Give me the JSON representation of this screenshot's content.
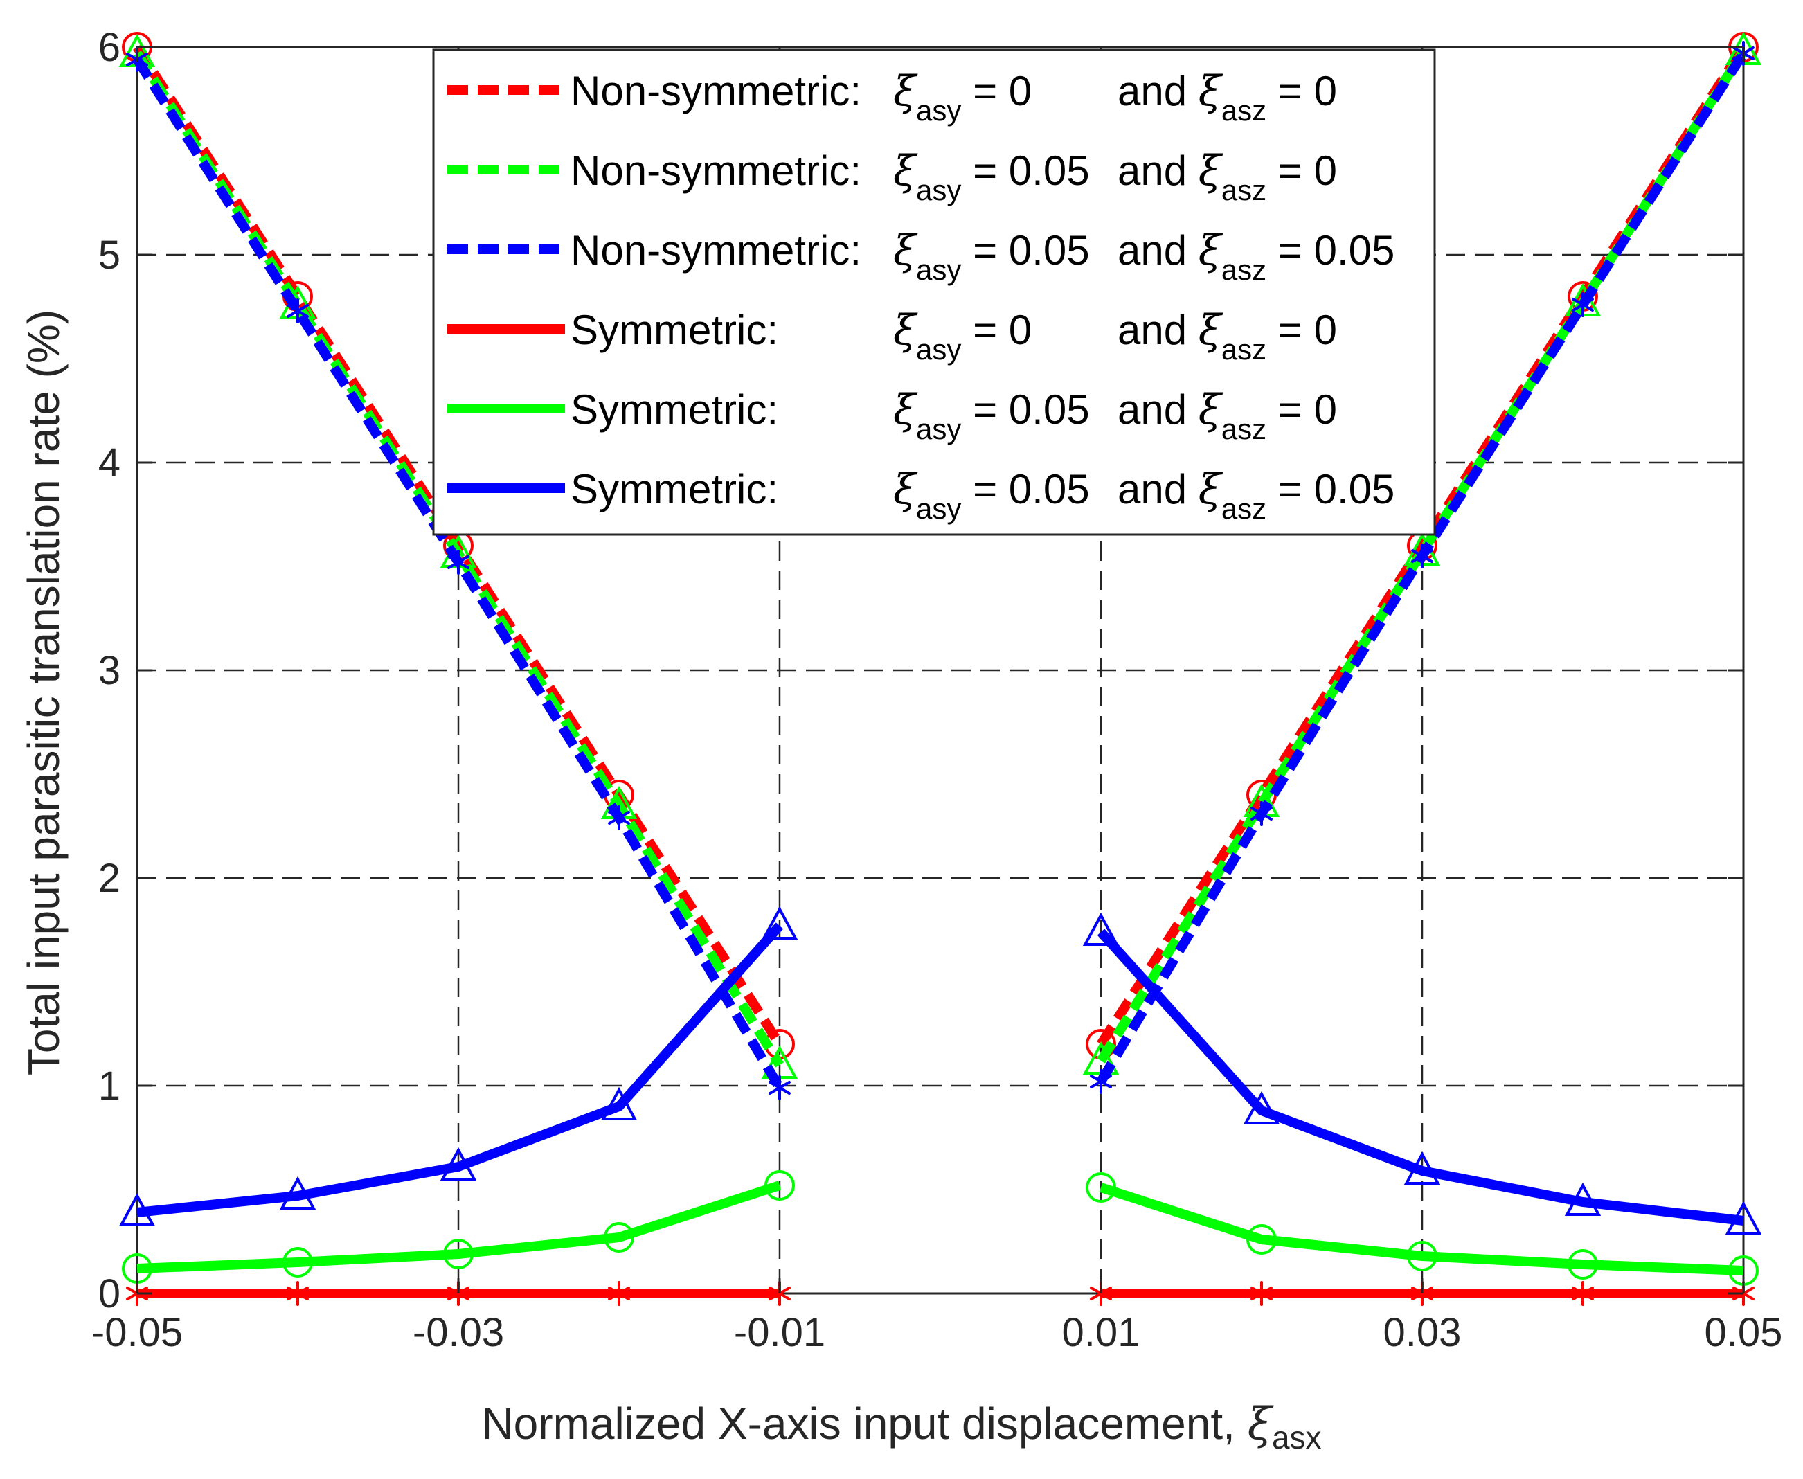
{
  "chart_data": {
    "type": "line",
    "title": "",
    "xlabel": "Normalized X-axis input displacement,",
    "xlabel_symbol": "ξ",
    "xlabel_subscript": "asx",
    "ylabel": "Total input parasitic translation rate (%)",
    "xlim": [
      -0.05,
      0.05
    ],
    "ylim": [
      0,
      6
    ],
    "grid": true,
    "legend_position": "top-center",
    "x_ticks": [
      -0.05,
      -0.03,
      -0.01,
      0.01,
      0.03,
      0.05
    ],
    "x_tick_labels": [
      "-0.05",
      "-0.03",
      "-0.01",
      "0.01",
      "0.03",
      "0.05"
    ],
    "y_ticks": [
      0,
      1,
      2,
      3,
      4,
      5,
      6
    ],
    "y_tick_labels": [
      "0",
      "1",
      "2",
      "3",
      "4",
      "5",
      "6"
    ],
    "x": [
      -0.05,
      -0.04,
      -0.03,
      -0.02,
      -0.01,
      0.01,
      0.02,
      0.03,
      0.04,
      0.05
    ],
    "series": [
      {
        "name": "Non-symmetric: ξasy = 0 and ξasz = 0",
        "label": {
          "prefix": "Non-symmetric:",
          "v1": "= 0",
          "mid": "and",
          "v2": "= 0"
        },
        "color": "#ff0000",
        "style": "dashed",
        "marker": "circle",
        "values": [
          6.0,
          4.8,
          3.6,
          2.4,
          1.2,
          1.2,
          2.4,
          3.6,
          4.8,
          6.0
        ]
      },
      {
        "name": "Non-symmetric: ξasy = 0.05 and ξasz = 0",
        "label": {
          "prefix": "Non-symmetric:",
          "v1": "= 0.05",
          "mid": "and",
          "v2": "= 0"
        },
        "color": "#00ff00",
        "style": "dashed",
        "marker": "triangle",
        "values": [
          5.97,
          4.76,
          3.56,
          2.35,
          1.1,
          1.12,
          2.36,
          3.57,
          4.77,
          5.98
        ]
      },
      {
        "name": "Non-symmetric: ξasy = 0.05 and ξasz = 0.05",
        "label": {
          "prefix": "Non-symmetric:",
          "v1": "= 0.05",
          "mid": "and",
          "v2": "= 0.05"
        },
        "color": "#0000ff",
        "style": "dashed",
        "marker": "asterisk",
        "values": [
          5.94,
          4.73,
          3.52,
          2.29,
          0.99,
          1.02,
          2.31,
          3.55,
          4.76,
          5.97
        ]
      },
      {
        "name": "Symmetric: ξasy = 0 and ξasz = 0",
        "label": {
          "prefix": "Symmetric:",
          "v1": "= 0",
          "mid": "and",
          "v2": "= 0"
        },
        "color": "#ff0000",
        "style": "solid",
        "marker": "asterisk",
        "values": [
          0.0,
          0.0,
          0.0,
          0.0,
          0.0,
          0.0,
          0.0,
          0.0,
          0.0,
          0.0
        ]
      },
      {
        "name": "Symmetric: ξasy = 0.05 and ξasz = 0",
        "label": {
          "prefix": "Symmetric:",
          "v1": "= 0.05",
          "mid": "and",
          "v2": "= 0"
        },
        "color": "#00ff00",
        "style": "solid",
        "marker": "circle",
        "values": [
          0.12,
          0.15,
          0.19,
          0.27,
          0.52,
          0.51,
          0.26,
          0.18,
          0.14,
          0.11
        ]
      },
      {
        "name": "Symmetric: ξasy = 0.05 and ξasz = 0.05",
        "label": {
          "prefix": "Symmetric:",
          "v1": "= 0.05",
          "mid": "and",
          "v2": "= 0.05"
        },
        "color": "#0000ff",
        "style": "solid",
        "marker": "triangle",
        "values": [
          0.39,
          0.47,
          0.61,
          0.9,
          1.77,
          1.74,
          0.88,
          0.59,
          0.44,
          0.35
        ]
      }
    ],
    "legend_symbols": {
      "xi": "ξ",
      "sub_y": "asy",
      "sub_z": "asz"
    }
  }
}
